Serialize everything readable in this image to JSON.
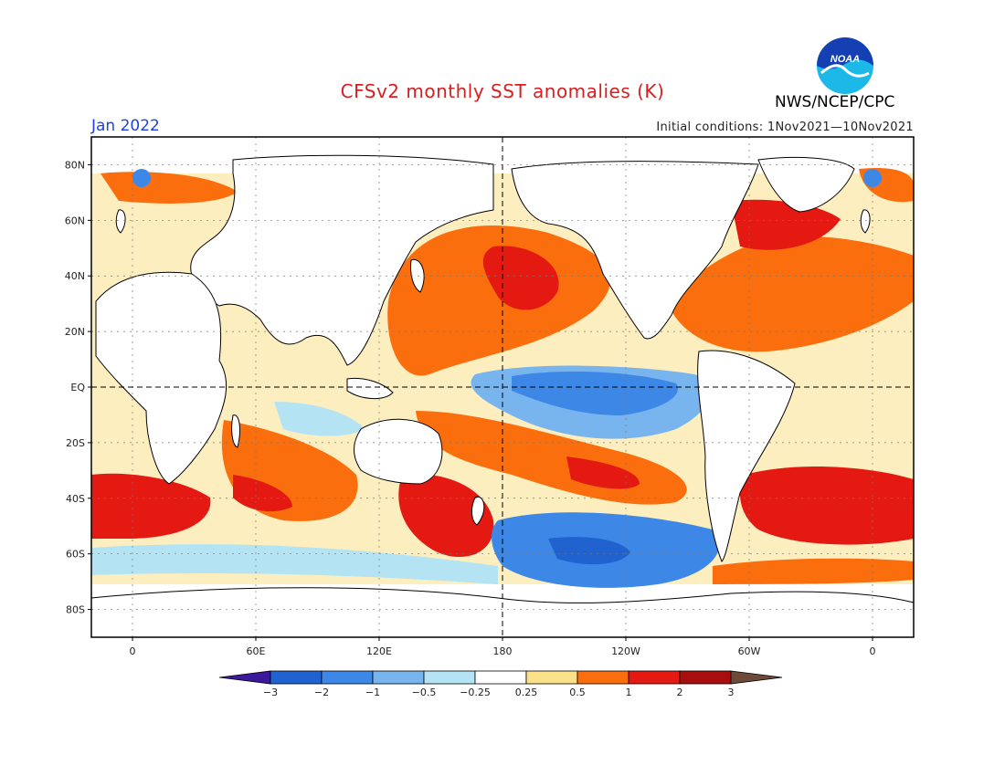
{
  "header": {
    "title": "CFSv2 monthly SST anomalies (K)",
    "month": "Jan 2022",
    "initial_conditions": "Initial conditions: 1Nov2021—10Nov2021",
    "agency": "NWS/NCEP/CPC",
    "logo_text": "NOAA"
  },
  "map": {
    "lat_labels": [
      "80N",
      "60N",
      "40N",
      "20N",
      "EQ",
      "20S",
      "40S",
      "60S",
      "80S"
    ],
    "lat_values": [
      80,
      60,
      40,
      20,
      0,
      -20,
      -40,
      -60,
      -80
    ],
    "lon_labels": [
      "0",
      "60E",
      "120E",
      "180",
      "120W",
      "60W",
      "0"
    ],
    "lon_values": [
      0,
      60,
      120,
      180,
      240,
      300,
      360
    ],
    "lon_range": [
      -20,
      380
    ],
    "lat_range": [
      -90,
      90
    ]
  },
  "colorbar": {
    "labels": [
      "−3",
      "−2",
      "−1",
      "−0.5",
      "−0.25",
      "0.25",
      "0.5",
      "1",
      "2",
      "3"
    ],
    "colors": [
      "#3a1a9a",
      "#1f62d0",
      "#3d88e6",
      "#78b4ee",
      "#b4e4f4",
      "#ffffff",
      "#fbe08a",
      "#fb6e0e",
      "#e41a12",
      "#a80e0e",
      "#6e4a3a"
    ]
  },
  "legend_colors": {
    "land": "#ffffff",
    "coast": "#000000",
    "zero_line": "#000000"
  }
}
